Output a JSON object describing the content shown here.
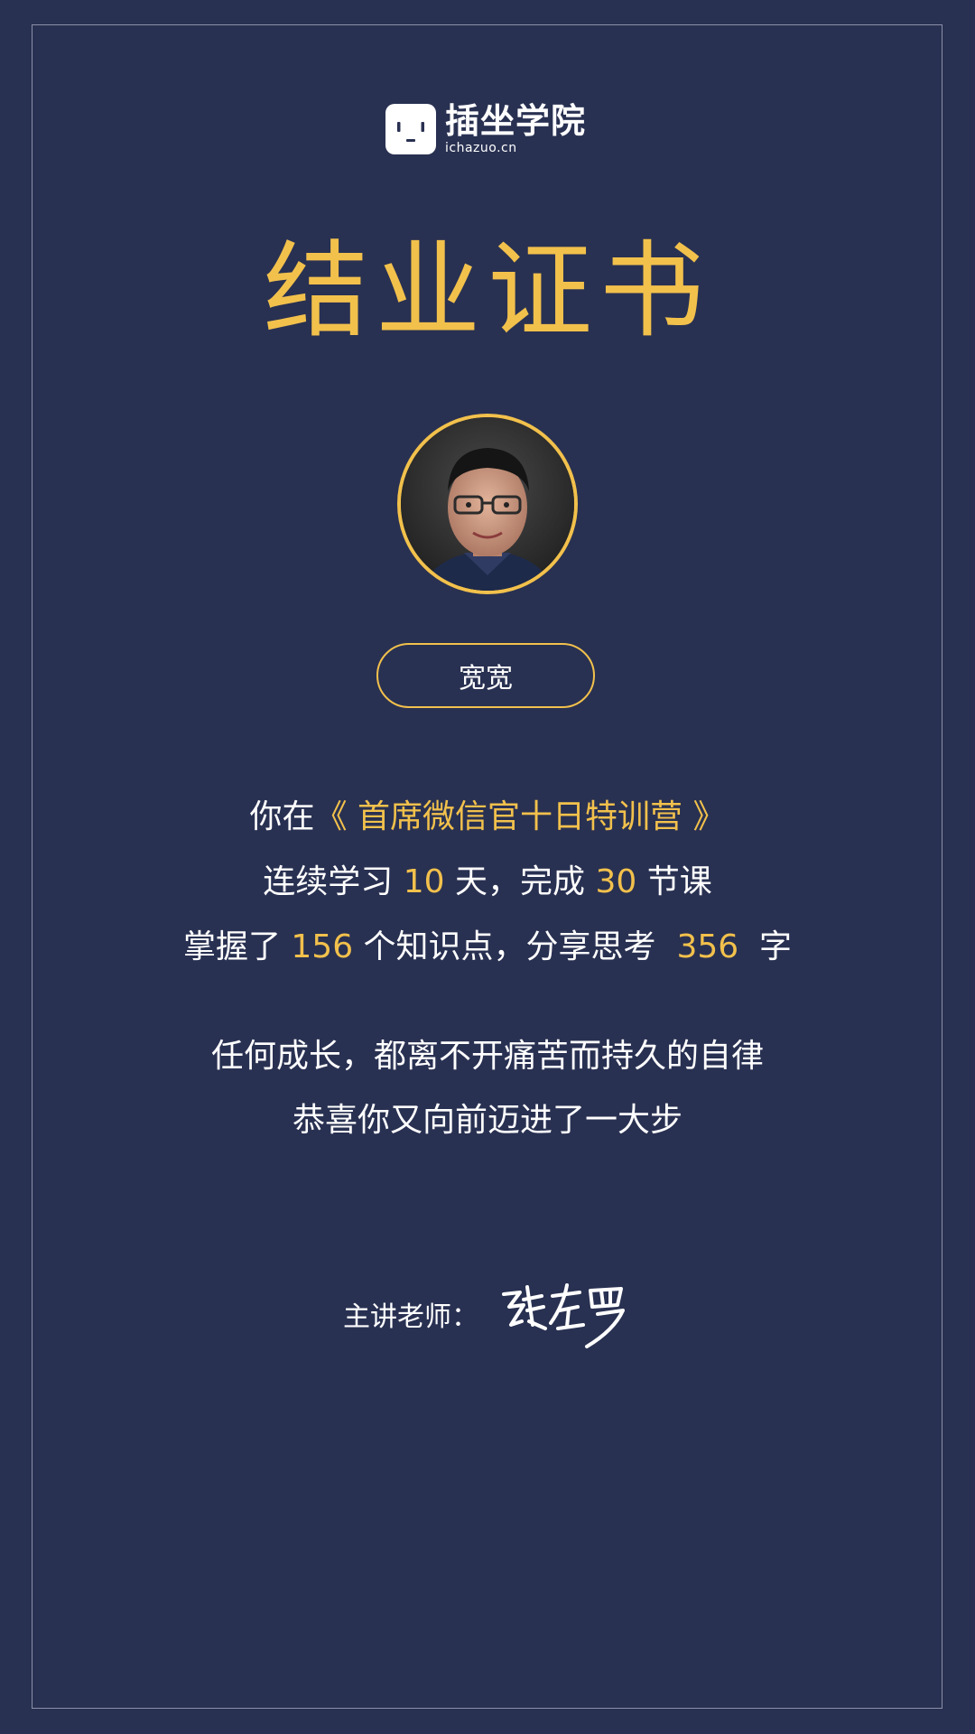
{
  "brand": {
    "name": "插坐学院",
    "url": "ichazuo.cn",
    "logo_icon": "socket-face-icon"
  },
  "certificate": {
    "title": "结业证书"
  },
  "student": {
    "avatar": "avatar-photo",
    "name": "宽宽"
  },
  "summary": {
    "line1_prefix": "你在",
    "course_title": "《 首席微信官十日特训营 》",
    "line2_part1": "连续学习 ",
    "days": "10",
    "line2_part2": " 天，完成 ",
    "lessons": "30",
    "line2_part3": " 节课",
    "line3_part1": "掌握了 ",
    "knowledge_points": "156",
    "line3_part2": " 个知识点，分享思考  ",
    "words": "356",
    "line3_part3": "  字"
  },
  "motto": {
    "line1": "任何成长，都离不开痛苦而持久的自律",
    "line2": "恭喜你又向前迈进了一大步"
  },
  "teacher": {
    "label": "主讲老师：",
    "signature": "張左罗"
  },
  "colors": {
    "background": "#293152",
    "accent": "#f2c14c",
    "text": "#ffffff"
  }
}
